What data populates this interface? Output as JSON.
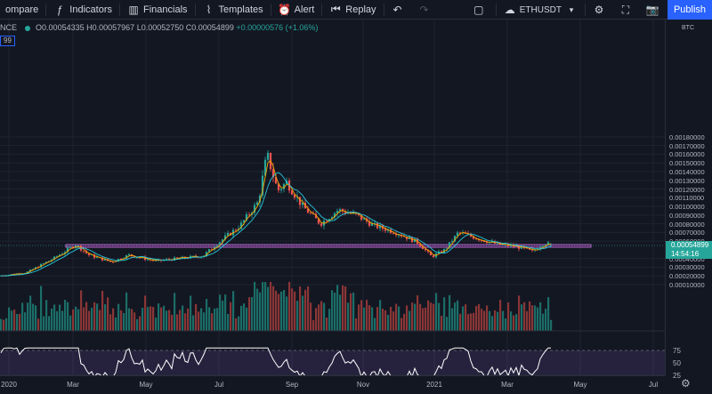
{
  "toolbar": {
    "compare_label": "ompare",
    "indicators_label": "Indicators",
    "financials_label": "Financials",
    "templates_label": "Templates",
    "alert_label": "Alert",
    "replay_label": "Replay",
    "symbol": "ETHUSDT",
    "publish_label": "Publish"
  },
  "legend": {
    "exchange_fragment": "NCE",
    "open": "O0.00054335",
    "high": "H0.00057967",
    "low": "L0.00052750",
    "close": "C0.00054899",
    "change": "+0.00000576 (+1.06%)",
    "ma_fragment": "99"
  },
  "price_axis": {
    "currency": "BTC",
    "current_price": "0.00054899",
    "countdown": "14:54:16",
    "labels": [
      "0.00180000",
      "0.00170000",
      "0.00160000",
      "0.00150000",
      "0.00140000",
      "0.00130000",
      "0.00120000",
      "0.00110000",
      "0.00100000",
      "0.00090000",
      "0.00080000",
      "0.00070000",
      "0.00060000",
      "0.00040000",
      "0.00030000",
      "0.00020000",
      "0.00010000"
    ]
  },
  "rsi_axis": {
    "labels": [
      "75",
      "50",
      "25"
    ]
  },
  "time_axis": {
    "labels": [
      "2020",
      "Mar",
      "May",
      "Jul",
      "Sep",
      "Nov",
      "2021",
      "Mar",
      "May",
      "Jul"
    ]
  },
  "colors": {
    "up": "#26a69a",
    "down": "#ef5350",
    "ma_fast": "#f7a600",
    "ma_slow": "#26c6da",
    "zone": "#9c27b0",
    "background": "#131722"
  },
  "chart_data": {
    "type": "candlestick",
    "pair": "ETHUSDT",
    "current_price": 0.00054899,
    "support_zone": [
      0.00053,
      0.00056
    ],
    "x": [
      "2020-01",
      "2020-02",
      "2020-03",
      "2020-04",
      "2020-05",
      "2020-06",
      "2020-07",
      "2020-08",
      "2020-09",
      "2020-10",
      "2020-11",
      "2020-12",
      "2021-01",
      "2021-02",
      "2021-03",
      "2021-04"
    ],
    "close_approx": [
      0.0002,
      0.00032,
      0.00055,
      0.00042,
      0.00037,
      0.00042,
      0.0007,
      0.0013,
      0.0009,
      0.0009,
      0.00075,
      0.00045,
      0.00068,
      0.00058,
      0.00052,
      0.00055
    ],
    "ylim": [
      0.0,
      0.00183
    ],
    "rsi": {
      "levels": [
        75,
        50,
        25
      ],
      "ylim": [
        20,
        80
      ]
    }
  }
}
